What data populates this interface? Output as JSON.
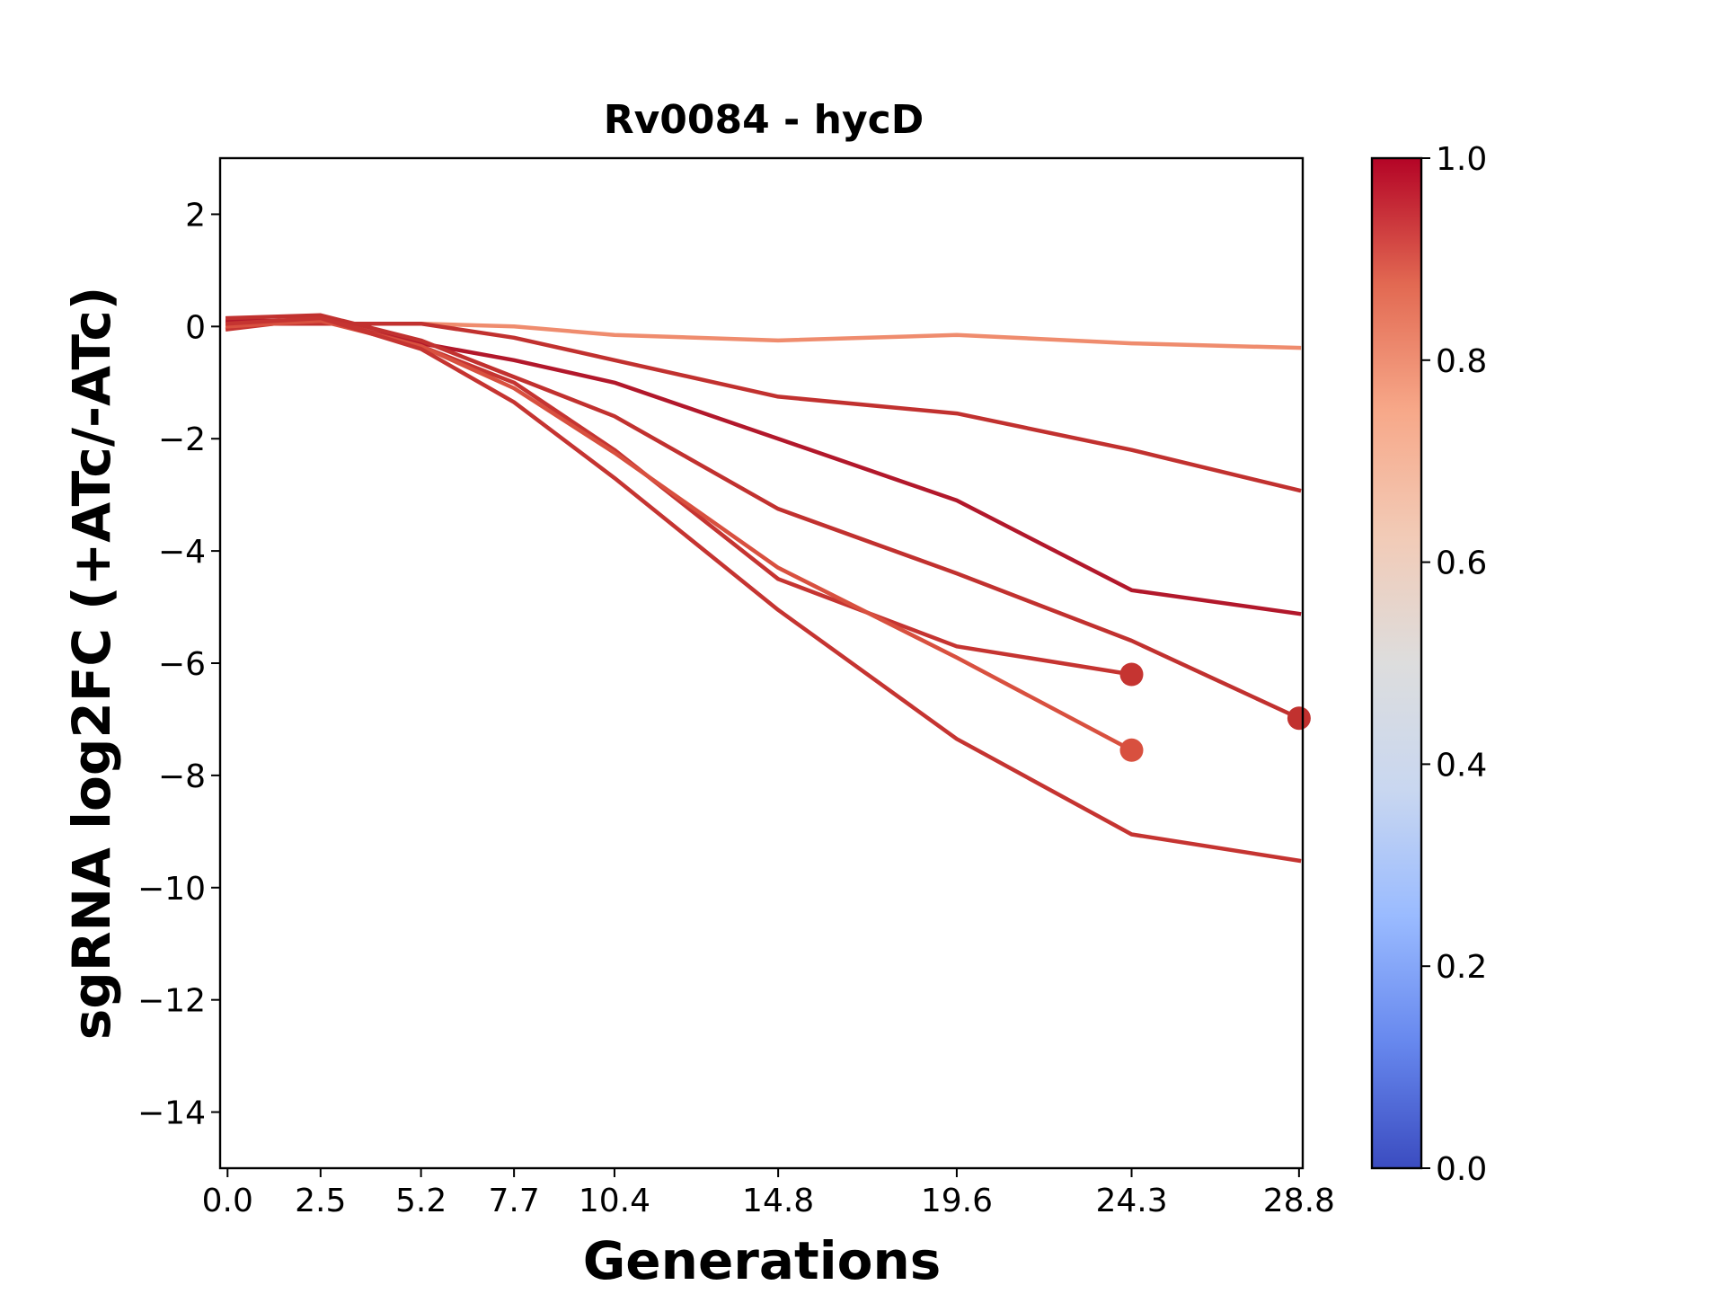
{
  "chart_data": {
    "type": "line",
    "title": "Rv0084 - hycD",
    "xlabel": "Generations",
    "ylabel": "sgRNA log2FC (+ATc/-ATc)",
    "x_ticks": [
      0.0,
      2.5,
      5.2,
      7.7,
      10.4,
      14.8,
      19.6,
      24.3,
      28.8
    ],
    "x_tick_labels": [
      "0.0",
      "2.5",
      "5.2",
      "7.7",
      "10.4",
      "14.8",
      "19.6",
      "24.3",
      "28.8"
    ],
    "xlim": [
      -0.2,
      28.9
    ],
    "ylim": [
      -15,
      3
    ],
    "y_ticks": [
      2,
      0,
      -2,
      -4,
      -6,
      -8,
      -10,
      -12,
      -14
    ],
    "y_tick_labels": [
      "2",
      "0",
      "−2",
      "−4",
      "−6",
      "−8",
      "−10",
      "−12",
      "−14"
    ],
    "grid": false,
    "colorbar": {
      "range": [
        0,
        1
      ],
      "ticks": [
        0.0,
        0.2,
        0.4,
        0.6,
        0.8,
        1.0
      ],
      "tick_labels": [
        "0.0",
        "0.2",
        "0.4",
        "0.6",
        "0.8",
        "1.0"
      ],
      "colormap": "coolwarm",
      "stops": [
        "#3b4cc0",
        "#6788ee",
        "#9abbff",
        "#c9d7f0",
        "#dddddd",
        "#f2cbb7",
        "#f7a889",
        "#e26952",
        "#b40426"
      ]
    },
    "series": [
      {
        "color": "#ef8c6e",
        "x": [
          0.0,
          2.5,
          5.2,
          7.7,
          10.4,
          14.8,
          19.6,
          24.3,
          28.8
        ],
        "y": [
          0.1,
          0.05,
          0.05,
          0.0,
          -0.15,
          -0.25,
          -0.15,
          -0.3,
          -0.38
        ],
        "end_marker": false
      },
      {
        "color": "#c1312f",
        "x": [
          0.0,
          2.5,
          5.2,
          7.7,
          10.4,
          14.8,
          19.6,
          24.3,
          28.8
        ],
        "y": [
          0.05,
          0.05,
          0.05,
          -0.2,
          -0.6,
          -1.25,
          -1.55,
          -2.2,
          -2.92
        ],
        "end_marker": false
      },
      {
        "color": "#b2182b",
        "x": [
          0.0,
          2.5,
          5.2,
          7.7,
          10.4,
          14.8,
          19.6,
          24.3,
          28.8
        ],
        "y": [
          0.1,
          0.1,
          -0.3,
          -0.6,
          -1.0,
          -2.0,
          -3.1,
          -4.7,
          -5.12
        ],
        "end_marker": false
      },
      {
        "color": "#c1312f",
        "x": [
          0.0,
          2.5,
          5.2,
          7.7,
          10.4,
          14.8,
          19.6,
          24.3,
          28.8
        ],
        "y": [
          0.15,
          0.2,
          -0.25,
          -0.9,
          -1.6,
          -3.25,
          -4.4,
          -5.6,
          -6.98
        ],
        "end_marker": true
      },
      {
        "color": "#c53431",
        "x": [
          0.0,
          2.5,
          5.2,
          7.7,
          10.4,
          14.8,
          19.6,
          24.3
        ],
        "y": [
          -0.05,
          0.15,
          -0.35,
          -1.0,
          -2.2,
          -4.5,
          -5.7,
          -6.2
        ],
        "end_marker": true
      },
      {
        "color": "#d8503f",
        "x": [
          0.0,
          2.5,
          5.2,
          7.7,
          10.4,
          14.8,
          19.6,
          24.3
        ],
        "y": [
          0.0,
          0.1,
          -0.35,
          -1.1,
          -2.25,
          -4.3,
          -5.9,
          -7.55
        ],
        "end_marker": true
      },
      {
        "color": "#c53431",
        "x": [
          0.0,
          2.5,
          5.2,
          7.7,
          10.4,
          14.8,
          19.6,
          24.3,
          28.8
        ],
        "y": [
          0.05,
          0.15,
          -0.4,
          -1.35,
          -2.7,
          -5.05,
          -7.35,
          -9.05,
          -9.52
        ],
        "end_marker": false
      }
    ]
  }
}
